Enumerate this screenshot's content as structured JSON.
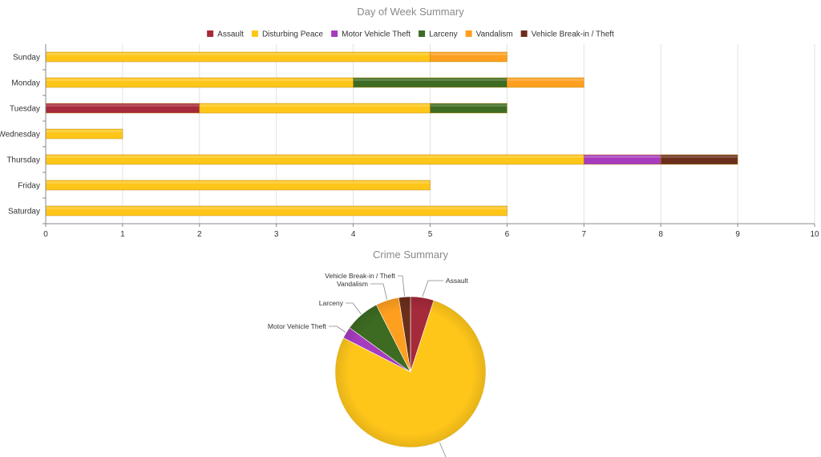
{
  "chart_data": [
    {
      "type": "bar",
      "orientation": "horizontal",
      "stacked": true,
      "title": "Day of Week Summary",
      "legend_position": "top",
      "categories": [
        "Sunday",
        "Monday",
        "Tuesday",
        "Wednesday",
        "Thursday",
        "Friday",
        "Saturday"
      ],
      "xlim": [
        0,
        10
      ],
      "xticks": [
        0,
        1,
        2,
        3,
        4,
        5,
        6,
        7,
        8,
        9,
        10
      ],
      "grid": true,
      "series": [
        {
          "name": "Assault",
          "color": "#a52a3a",
          "values": [
            0,
            0,
            2,
            0,
            0,
            0,
            0
          ]
        },
        {
          "name": "Disturbing Peace",
          "color": "#ffc61a",
          "values": [
            5,
            4,
            3,
            1,
            7,
            5,
            6
          ]
        },
        {
          "name": "Motor Vehicle Theft",
          "color": "#a63bbd",
          "values": [
            0,
            0,
            0,
            0,
            1,
            0,
            0
          ]
        },
        {
          "name": "Larceny",
          "color": "#3d6b22",
          "values": [
            0,
            2,
            1,
            0,
            0,
            0,
            0
          ]
        },
        {
          "name": "Vandalism",
          "color": "#ff9f1f",
          "values": [
            1,
            1,
            0,
            0,
            0,
            0,
            0
          ]
        },
        {
          "name": "Vehicle Break-in / Theft",
          "color": "#6b2e1a",
          "values": [
            0,
            0,
            0,
            0,
            1,
            0,
            0
          ]
        }
      ]
    },
    {
      "type": "pie",
      "title": "Crime Summary",
      "slices": [
        {
          "name": "Assault",
          "color": "#a52a3a",
          "value": 2
        },
        {
          "name": "Disturbing Peace",
          "color": "#ffc61a",
          "value": 31
        },
        {
          "name": "Motor Vehicle Theft",
          "color": "#a63bbd",
          "value": 1
        },
        {
          "name": "Larceny",
          "color": "#3d6b22",
          "value": 3
        },
        {
          "name": "Vandalism",
          "color": "#ff9f1f",
          "value": 2
        },
        {
          "name": "Vehicle Break-in / Theft",
          "color": "#6b2e1a",
          "value": 1
        }
      ]
    }
  ]
}
